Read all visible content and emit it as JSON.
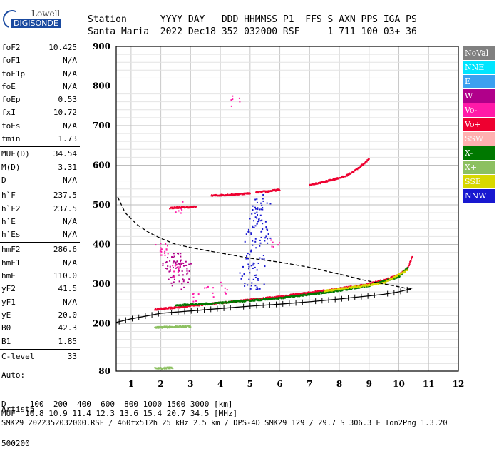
{
  "logo": {
    "line1": "Lowell",
    "line2": "DIGISONDE"
  },
  "header": {
    "line1": "Station      YYYY DAY   DDD HHMMSS P1  FFS S AXN PPS IGA PS",
    "line2": "Santa Maria  2022 Dec18 352 032000 RSF     1 711 100 03+ 36"
  },
  "params": [
    {
      "group": [
        {
          "name": "foF2",
          "value": "10.425"
        },
        {
          "name": "foF1",
          "value": "N/A"
        },
        {
          "name": "foF1p",
          "value": "N/A"
        },
        {
          "name": "foE",
          "value": "N/A"
        },
        {
          "name": "foEp",
          "value": "0.53"
        },
        {
          "name": "fxI",
          "value": "10.72"
        },
        {
          "name": "foEs",
          "value": "N/A"
        },
        {
          "name": "fmin",
          "value": "1.73"
        }
      ]
    },
    {
      "group": [
        {
          "name": "MUF(D)",
          "value": "34.54"
        },
        {
          "name": "M(D)",
          "value": "3.31"
        },
        {
          "name": "D",
          "value": "N/A"
        }
      ]
    },
    {
      "group": [
        {
          "name": "h`F",
          "value": "237.5"
        },
        {
          "name": "h`F2",
          "value": "237.5"
        },
        {
          "name": "h`E",
          "value": "N/A"
        },
        {
          "name": "h`Es",
          "value": "N/A"
        }
      ]
    },
    {
      "group": [
        {
          "name": "hmF2",
          "value": "286.6"
        },
        {
          "name": "hmF1",
          "value": "N/A"
        },
        {
          "name": "hmE",
          "value": "110.0"
        },
        {
          "name": "yF2",
          "value": "41.5"
        },
        {
          "name": "yF1",
          "value": "N/A"
        },
        {
          "name": "yE",
          "value": "20.0"
        },
        {
          "name": "B0",
          "value": "42.3"
        },
        {
          "name": "B1",
          "value": "1.85"
        }
      ]
    },
    {
      "group": [
        {
          "name": "C-level",
          "value": "33"
        }
      ]
    }
  ],
  "autoscaling": {
    "line1": "Auto:",
    "line2": "Artist5",
    "line3": "500200"
  },
  "footer": {
    "d_line": "D     100  200  400  600  800 1000 1500 3000 [km]",
    "muf_line": "MUF  10.8 10.9 11.4 12.3 13.6 15.4 20.7 34.5 [MHz]",
    "file_line": "SMK29_2022352032000.RSF / 460fx512h 25 kHz 2.5 km / DPS-4D SMK29 129 / 29.7 S 306.3 E Ion2Png 1.3.20"
  },
  "legend": [
    {
      "label": "NoVal",
      "color": "#808080"
    },
    {
      "label": "NNE",
      "color": "#00e5ff"
    },
    {
      "label": "E",
      "color": "#3ba0f0"
    },
    {
      "label": "W",
      "color": "#b0008a"
    },
    {
      "label": "Vo-",
      "color": "#ff1aa8"
    },
    {
      "label": "Vo+",
      "color": "#ee0030"
    },
    {
      "label": "SSW",
      "color": "#ffb0b0"
    },
    {
      "label": "X-",
      "color": "#007800"
    },
    {
      "label": "X+",
      "color": "#8cc060"
    },
    {
      "label": "SSE",
      "color": "#d8d800"
    },
    {
      "label": "NNW",
      "color": "#1818d0"
    }
  ],
  "chart_data": {
    "type": "scatter",
    "xlim": [
      0.5,
      12
    ],
    "ylim": [
      80,
      900
    ],
    "x_ticks": [
      1,
      2,
      3,
      4,
      5,
      6,
      7,
      8,
      9,
      10,
      11,
      12
    ],
    "y_ticks": [
      80,
      200,
      300,
      400,
      500,
      600,
      700,
      800,
      900
    ],
    "grid": true,
    "series": [
      {
        "name": "Vo+",
        "color": "#ee0030",
        "mode": "band",
        "x": [
          1.8,
          2.5,
          3,
          4,
          5,
          6,
          7,
          8,
          9,
          9.5,
          10,
          10.3,
          10.45
        ],
        "y": [
          236,
          240,
          245,
          252,
          260,
          268,
          278,
          288,
          300,
          310,
          322,
          340,
          368
        ]
      },
      {
        "name": "Vo+",
        "color": "#ee0030",
        "mode": "band",
        "x": [
          5.2,
          5.4,
          5.6,
          5.8,
          6
        ],
        "y": [
          531,
          533,
          534,
          536,
          538
        ]
      },
      {
        "name": "Vo+",
        "color": "#ee0030",
        "mode": "band",
        "x": [
          3.7,
          4.2,
          4.6,
          5.0
        ],
        "y": [
          523,
          525,
          527,
          529
        ]
      },
      {
        "name": "Vo+",
        "color": "#ee0030",
        "mode": "band",
        "x": [
          2.3,
          2.6,
          2.9,
          3.2
        ],
        "y": [
          492,
          493,
          494,
          495
        ]
      },
      {
        "name": "Vo+",
        "color": "#ee0030",
        "mode": "band",
        "x": [
          7.0,
          7.4,
          7.8,
          8.2,
          8.6,
          9.0
        ],
        "y": [
          550,
          556,
          564,
          572,
          590,
          615
        ]
      },
      {
        "name": "X-",
        "color": "#007800",
        "mode": "band",
        "x": [
          2.5,
          4,
          6,
          8,
          9,
          10,
          10.3
        ],
        "y": [
          246,
          252,
          264,
          283,
          296,
          318,
          342
        ]
      },
      {
        "name": "X+",
        "color": "#8cc060",
        "mode": "band",
        "x": [
          1.8,
          2.2,
          2.6,
          3.0
        ],
        "y": [
          190,
          191,
          192,
          193
        ]
      },
      {
        "name": "X+",
        "color": "#8cc060",
        "mode": "band",
        "x": [
          1.8,
          2.0,
          2.2,
          2.4
        ],
        "y": [
          87,
          87,
          88,
          88
        ]
      },
      {
        "name": "SSE",
        "color": "#d8d800",
        "mode": "band",
        "x": [
          7.5,
          8.5,
          9.5,
          10.3
        ],
        "y": [
          282,
          292,
          303,
          335
        ]
      },
      {
        "name": "NNW",
        "color": "#1818d0",
        "mode": "cloud",
        "x": [
          4.9,
          5.0,
          5.1,
          5.2,
          5.3,
          5.4,
          5.5,
          5.0,
          5.2,
          5.4,
          4.8,
          5.1,
          5.3,
          5.5,
          5.2,
          5.0,
          4.9,
          5.4,
          5.3,
          5.1
        ],
        "y": [
          420,
          440,
          460,
          480,
          500,
          420,
          430,
          380,
          400,
          360,
          330,
          310,
          300,
          520,
          505,
          350,
          300,
          450,
          470,
          340
        ]
      },
      {
        "name": "W",
        "color": "#b0008a",
        "mode": "cloud",
        "x": [
          2.2,
          2.4,
          2.6,
          2.8,
          2.5,
          2.7,
          2.3,
          2.6,
          2.9,
          2.4,
          2.8,
          2.5
        ],
        "y": [
          340,
          350,
          360,
          345,
          330,
          370,
          355,
          320,
          340,
          310,
          300,
          365
        ]
      },
      {
        "name": "Vo-",
        "color": "#ff1aa8",
        "mode": "cloud",
        "x": [
          1.95,
          2.05,
          2.1,
          2.6,
          2.55,
          2.45,
          3.1,
          3.6,
          4.1,
          4.5,
          5.8
        ],
        "y": [
          389,
          389,
          390,
          495,
          350,
          335,
          270,
          280,
          290,
          765,
          400
        ]
      }
    ],
    "curves": [
      {
        "name": "virtual-height profile",
        "color": "#000000",
        "style": "solid-ticked",
        "x": [
          0.5,
          1.0,
          2.0,
          3.0,
          4.0,
          5.0,
          6.0,
          7.0,
          8.0,
          9.0,
          9.5,
          10.0,
          10.3,
          10.45
        ],
        "y": [
          203,
          212,
          226,
          232,
          238,
          244,
          249,
          255,
          262,
          270,
          274,
          280,
          286,
          290
        ]
      },
      {
        "name": "electron-density profile",
        "color": "#000000",
        "style": "dashed",
        "x": [
          0.55,
          0.8,
          1.2,
          1.6,
          2.0,
          2.5,
          3.0,
          3.5,
          4.0,
          5.0,
          6.0,
          7.0,
          8.0,
          8.8,
          9.5,
          10.0,
          10.3,
          10.45
        ],
        "y": [
          520,
          480,
          450,
          430,
          415,
          400,
          392,
          385,
          378,
          365,
          355,
          342,
          325,
          310,
          300,
          293,
          288,
          285
        ]
      }
    ]
  }
}
